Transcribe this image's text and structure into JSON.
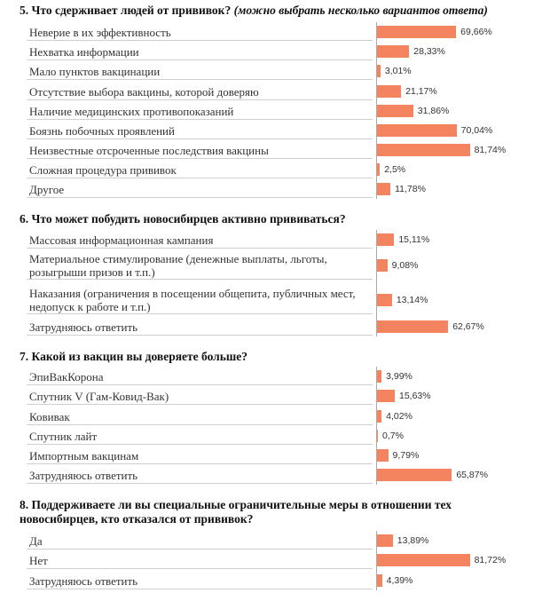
{
  "questions": [
    {
      "title": "5. Что сдерживает людей от прививок?",
      "note": "(можно выбрать несколько вариантов ответа)",
      "chart_data": {
        "type": "bar",
        "categories": [
          "Неверие в их эффективность",
          "Нехватка информации",
          "Мало пунктов вакцинации",
          "Отсутствие выбора вакцины, которой доверяю",
          "Наличие медицинских противопоказаний",
          "Боязнь побочных проявлений",
          "Неизвестные отсроченные последствия вакцины",
          "Сложная процедура прививок",
          "Другое"
        ],
        "values": [
          69.66,
          28.33,
          3.01,
          21.17,
          31.86,
          70.04,
          81.74,
          2.5,
          11.78
        ],
        "value_labels": [
          "69,66%",
          "28,33%",
          "3,01%",
          "21,17%",
          "31,86%",
          "70,04%",
          "81,74%",
          "2,5%",
          "11,78%"
        ],
        "xlim": [
          0,
          100
        ]
      }
    },
    {
      "title": "6. Что может побудить новосибирцев активно прививаться?",
      "note": "",
      "chart_data": {
        "type": "bar",
        "categories": [
          "Массовая информационная кампания",
          "Материальное стимулирование (денежные выплаты, льготы, розыгрыши призов и т.п.)",
          "Наказания (ограничения в посещении общепита, публичных мест, недопуск к работе и т.п.)",
          "Затрудняюсь ответить"
        ],
        "values": [
          15.11,
          9.08,
          13.14,
          62.67
        ],
        "value_labels": [
          "15,11%",
          "9,08%",
          "13,14%",
          "62,67%"
        ],
        "xlim": [
          0,
          100
        ]
      }
    },
    {
      "title": "7. Какой из вакцин вы доверяете больше?",
      "note": "",
      "chart_data": {
        "type": "bar",
        "categories": [
          "ЭпиВакКорона",
          "Спутник V (Гам-Ковид-Вак)",
          "Ковивак",
          "Спутник лайт",
          "Импортным вакцинам",
          "Затрудняюсь ответить"
        ],
        "values": [
          3.99,
          15.63,
          4.02,
          0.7,
          9.79,
          65.87
        ],
        "value_labels": [
          "3,99%",
          "15,63%",
          "4,02%",
          "0,7%",
          "9,79%",
          "65,87%"
        ],
        "xlim": [
          0,
          100
        ]
      }
    },
    {
      "title": "8. Поддерживаете ли вы специальные ограничительные меры  в отношении тех новосибирцев, кто отказался от прививок?",
      "note": "",
      "chart_data": {
        "type": "bar",
        "categories": [
          "Да",
          "Нет",
          "Затрудняюсь ответить"
        ],
        "values": [
          13.89,
          81.72,
          4.39
        ],
        "value_labels": [
          "13,89%",
          "81,72%",
          "4,39%"
        ],
        "xlim": [
          0,
          100
        ]
      }
    }
  ]
}
